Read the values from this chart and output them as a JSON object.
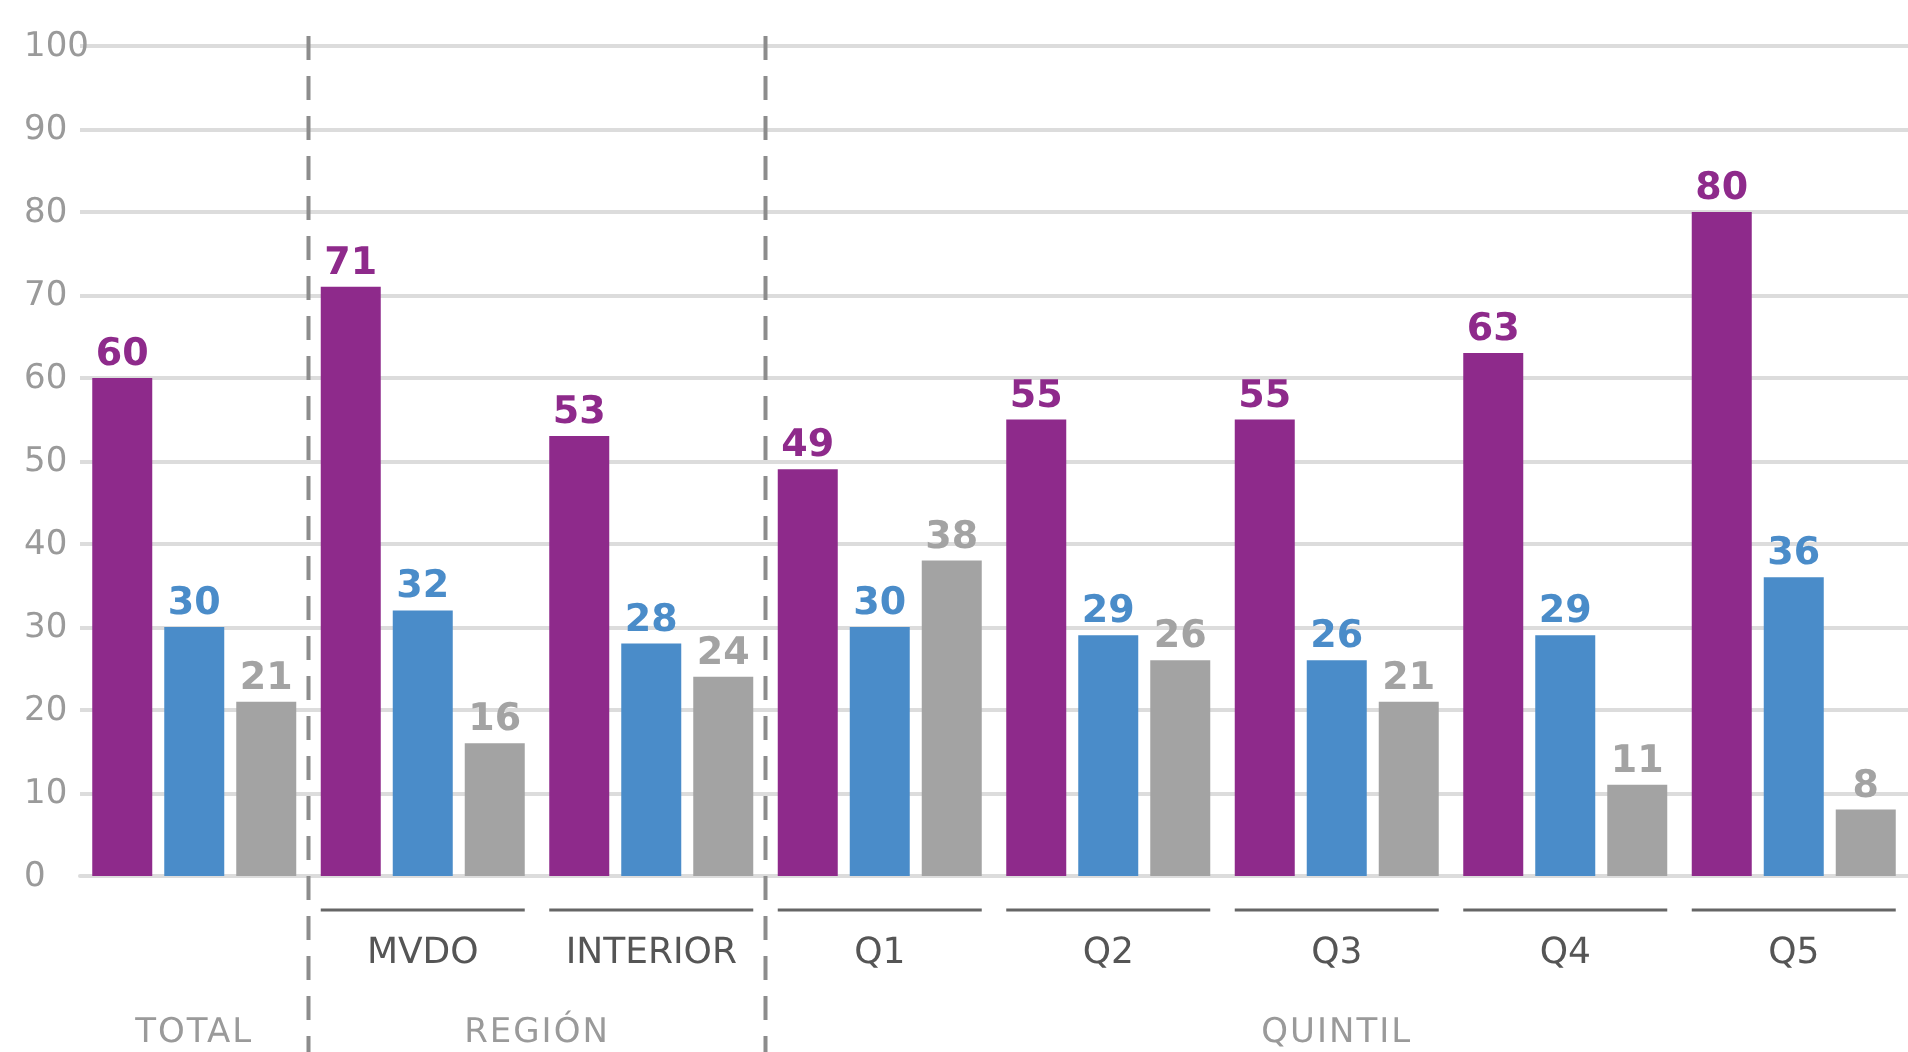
{
  "chart_data": {
    "type": "bar",
    "categories": [
      null,
      "MVDO",
      "INTERIOR",
      "Q1",
      "Q2",
      "Q3",
      "Q4",
      "Q5"
    ],
    "series": [
      {
        "color": "#8e2a8b",
        "values": [
          60,
          71,
          53,
          49,
          55,
          55,
          63,
          80
        ]
      },
      {
        "color": "#4a8cc9",
        "values": [
          30,
          32,
          28,
          30,
          29,
          26,
          29,
          36
        ]
      },
      {
        "color": "#a3a3a3",
        "values": [
          21,
          16,
          24,
          38,
          26,
          21,
          11,
          8
        ]
      }
    ],
    "ylim": [
      0,
      100
    ],
    "yticks": [
      0,
      10,
      20,
      30,
      40,
      50,
      60,
      70,
      80,
      90,
      100
    ],
    "grid": "y",
    "data_labels": true,
    "annotations": [
      "TOTAL",
      "REGIÓN",
      "QUINTIL"
    ]
  }
}
